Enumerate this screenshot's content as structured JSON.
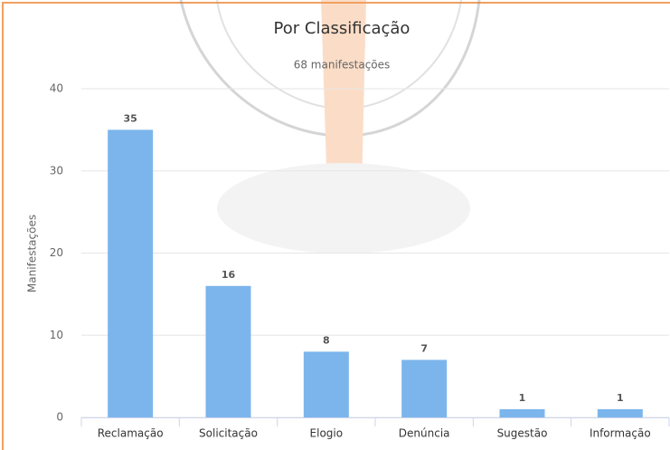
{
  "chart_data": {
    "type": "bar",
    "title": "Por Classificação",
    "subtitle": "68 manifestações",
    "y_label": "Manifestações",
    "categories": [
      "Reclamação",
      "Solicitação",
      "Elogio",
      "Denúncia",
      "Sugestão",
      "Informação"
    ],
    "values": [
      35,
      16,
      8,
      7,
      1,
      1
    ],
    "color": "#7cb5ec",
    "ylim": [
      0,
      40
    ],
    "yticks": [
      0,
      10,
      20,
      30,
      40
    ],
    "grid": true
  }
}
